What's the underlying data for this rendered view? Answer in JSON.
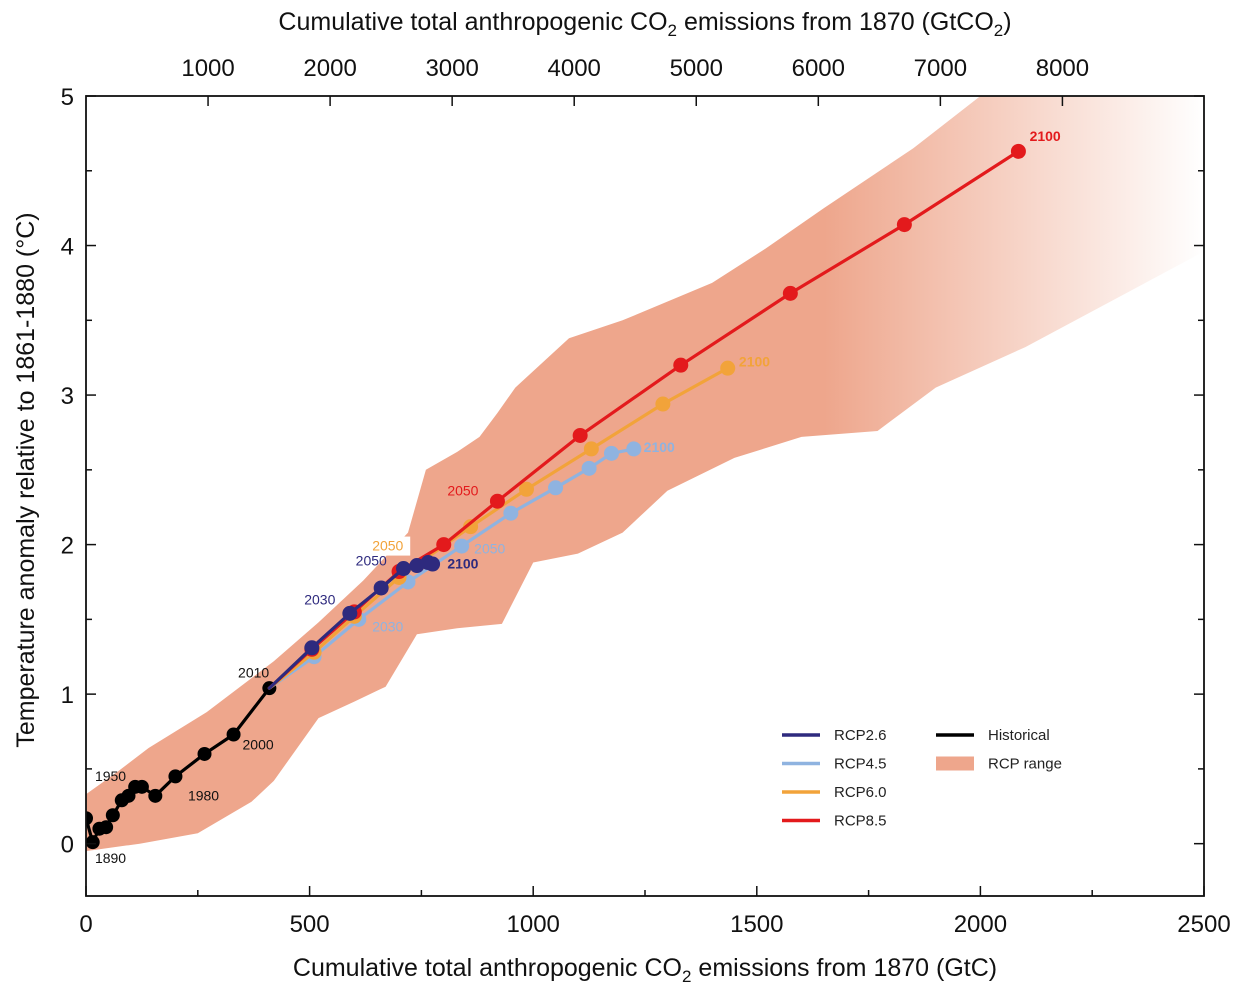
{
  "chart_data": {
    "type": "line",
    "xlabel_prefix": "Cumulative total anthropogenic CO",
    "xlabel_sub": "2",
    "xlabel_suffix": " emissions from 1870 (GtC)",
    "x2label_prefix": "Cumulative total anthropogenic CO",
    "x2label_sub": "2",
    "x2label_suffix": " emissions from 1870 (GtCO",
    "x2label_sub2": "2",
    "x2label_end": ")",
    "ylabel": "Temperature anomaly relative to 1861-1880 (°C)",
    "xlim": [
      0,
      2500
    ],
    "ylim": [
      -0.35,
      5
    ],
    "xticks": [
      "0",
      "500",
      "1000",
      "1500",
      "2000",
      "2500"
    ],
    "x2ticks": [
      "1000",
      "2000",
      "3000",
      "4000",
      "5000",
      "6000",
      "7000",
      "8000"
    ],
    "yticks": [
      "0",
      "1",
      "2",
      "3",
      "4",
      "5"
    ],
    "colors": {
      "rcp26": "#2e2a7e",
      "rcp45": "#8fb3e0",
      "rcp60": "#f2a33a",
      "rcp85": "#e31a1c",
      "historical": "#000000",
      "range": "#eea68c"
    },
    "range_band": {
      "upper": [
        [
          0,
          0.33
        ],
        [
          70,
          0.48
        ],
        [
          140,
          0.64
        ],
        [
          270,
          0.88
        ],
        [
          420,
          1.22
        ],
        [
          520,
          1.48
        ],
        [
          620,
          1.76
        ],
        [
          720,
          2.08
        ],
        [
          760,
          2.5
        ],
        [
          830,
          2.62
        ],
        [
          880,
          2.72
        ],
        [
          920,
          2.88
        ],
        [
          960,
          3.05
        ],
        [
          1080,
          3.38
        ],
        [
          1200,
          3.5
        ],
        [
          1400,
          3.75
        ],
        [
          1520,
          3.98
        ],
        [
          1650,
          4.25
        ],
        [
          1850,
          4.65
        ],
        [
          2000,
          5.0
        ]
      ],
      "lower": [
        [
          0,
          -0.05
        ],
        [
          120,
          0.0
        ],
        [
          250,
          0.07
        ],
        [
          370,
          0.28
        ],
        [
          420,
          0.42
        ],
        [
          520,
          0.84
        ],
        [
          600,
          0.95
        ],
        [
          670,
          1.05
        ],
        [
          740,
          1.4
        ],
        [
          830,
          1.44
        ],
        [
          930,
          1.47
        ],
        [
          1000,
          1.88
        ],
        [
          1100,
          1.94
        ],
        [
          1200,
          2.08
        ],
        [
          1300,
          2.36
        ],
        [
          1450,
          2.58
        ],
        [
          1600,
          2.72
        ],
        [
          1770,
          2.76
        ],
        [
          1900,
          3.05
        ],
        [
          2100,
          3.32
        ],
        [
          2500,
          3.96
        ]
      ]
    },
    "series": [
      {
        "key": "historical",
        "name": "Historical",
        "points": [
          [
            0,
            0.17
          ],
          [
            15,
            0.01
          ],
          [
            30,
            0.1
          ],
          [
            45,
            0.11
          ],
          [
            60,
            0.19
          ],
          [
            80,
            0.29
          ],
          [
            95,
            0.32
          ],
          [
            110,
            0.38
          ],
          [
            125,
            0.38
          ],
          [
            155,
            0.32
          ],
          [
            200,
            0.45
          ],
          [
            265,
            0.6
          ],
          [
            330,
            0.73
          ],
          [
            410,
            1.04
          ]
        ]
      },
      {
        "key": "rcp45",
        "name": "RCP4.5",
        "points": [
          [
            410,
            1.04
          ],
          [
            510,
            1.25
          ],
          [
            610,
            1.5
          ],
          [
            720,
            1.75
          ],
          [
            840,
            1.99
          ],
          [
            950,
            2.21
          ],
          [
            1050,
            2.38
          ],
          [
            1125,
            2.51
          ],
          [
            1175,
            2.61
          ],
          [
            1225,
            2.64
          ]
        ]
      },
      {
        "key": "rcp60",
        "name": "RCP6.0",
        "points": [
          [
            410,
            1.04
          ],
          [
            510,
            1.28
          ],
          [
            600,
            1.52
          ],
          [
            700,
            1.78
          ],
          [
            860,
            2.12
          ],
          [
            985,
            2.37
          ],
          [
            1130,
            2.64
          ],
          [
            1290,
            2.94
          ],
          [
            1435,
            3.18
          ]
        ]
      },
      {
        "key": "rcp85",
        "name": "RCP8.5",
        "points": [
          [
            410,
            1.04
          ],
          [
            505,
            1.3
          ],
          [
            600,
            1.55
          ],
          [
            700,
            1.82
          ],
          [
            800,
            2.0
          ],
          [
            920,
            2.29
          ],
          [
            1105,
            2.73
          ],
          [
            1330,
            3.2
          ],
          [
            1575,
            3.68
          ],
          [
            1830,
            4.14
          ],
          [
            2085,
            4.63
          ]
        ]
      },
      {
        "key": "rcp26",
        "name": "RCP2.6",
        "points": [
          [
            410,
            1.04
          ],
          [
            505,
            1.31
          ],
          [
            590,
            1.54
          ],
          [
            660,
            1.71
          ],
          [
            710,
            1.84
          ],
          [
            740,
            1.86
          ],
          [
            765,
            1.88
          ],
          [
            775,
            1.87
          ]
        ]
      }
    ],
    "year_labels": [
      {
        "text": "1950",
        "x": 20,
        "y": 0.42,
        "color": "#111111"
      },
      {
        "text": "1890",
        "x": 20,
        "y": -0.13,
        "color": "#111111"
      },
      {
        "text": "1980",
        "x": 228,
        "y": 0.29,
        "color": "#111111"
      },
      {
        "text": "2000",
        "x": 350,
        "y": 0.63,
        "color": "#111111"
      },
      {
        "text": "2010",
        "x": 340,
        "y": 1.11,
        "color": "#111111"
      },
      {
        "text": "2030",
        "x": 488,
        "y": 1.6,
        "color": "#2e2a7e"
      },
      {
        "text": "2050",
        "x": 603,
        "y": 1.86,
        "color": "#2e2a7e"
      },
      {
        "text": "2100",
        "x": 808,
        "y": 1.84,
        "color": "#2e2a7e",
        "bold": true
      },
      {
        "text": "2030",
        "x": 640,
        "y": 1.42,
        "color": "#8fb3e0"
      },
      {
        "text": "2050",
        "x": 868,
        "y": 1.94,
        "color": "#8fb3e0"
      },
      {
        "text": "2100",
        "x": 1247,
        "y": 2.62,
        "color": "#8fb3e0",
        "bold": true
      },
      {
        "text": "2050",
        "x": 640,
        "y": 1.96,
        "color": "#f2a33a",
        "box": true
      },
      {
        "text": "2100",
        "x": 1460,
        "y": 3.19,
        "color": "#f2a33a",
        "bold": true
      },
      {
        "text": "2050",
        "x": 808,
        "y": 2.33,
        "color": "#e31a1c"
      },
      {
        "text": "2100",
        "x": 2110,
        "y": 4.7,
        "color": "#e31a1c",
        "bold": true
      }
    ],
    "legend": [
      {
        "key": "rcp26",
        "label": "RCP2.6"
      },
      {
        "key": "rcp45",
        "label": "RCP4.5"
      },
      {
        "key": "rcp60",
        "label": "RCP6.0"
      },
      {
        "key": "rcp85",
        "label": "RCP8.5"
      },
      {
        "key": "historical",
        "label": "Historical"
      },
      {
        "key": "range",
        "label": "RCP range"
      }
    ],
    "legend_placement": "bottom-right"
  }
}
